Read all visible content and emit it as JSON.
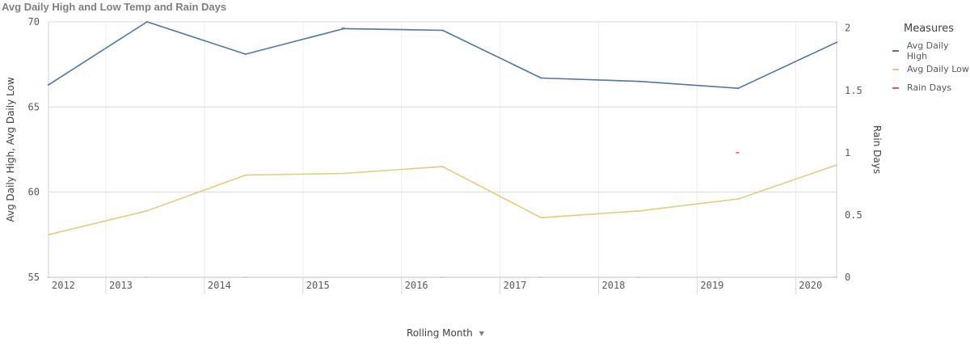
{
  "title": "Avg Daily High and Low Temp and Rain Days",
  "legend": {
    "title": "Measures",
    "items": [
      {
        "label": "Avg Daily High",
        "color": "#4a78a4"
      },
      {
        "label": "Avg Daily Low",
        "color": "#e2cd7a"
      },
      {
        "label": "Rain Days",
        "color": "#e05a72"
      }
    ]
  },
  "x_axis": {
    "title": "Rolling Month",
    "caret": "▼"
  },
  "chart_data": {
    "type": "line",
    "title": "Avg Daily High and Low Temp and Rain Days",
    "xlabel": "Rolling Month",
    "ylabel": "Avg Daily High, Avg Daily Low",
    "ylabel_right": "Rain Days",
    "categories": [
      "2012",
      "2013",
      "2014",
      "2015",
      "2016",
      "2017",
      "2018",
      "2019",
      "2020"
    ],
    "y_ticks": [
      "55",
      "60",
      "65",
      "70"
    ],
    "y_right_ticks": [
      "0",
      "0.5",
      "1",
      "1.5",
      "2"
    ],
    "ylim": [
      55,
      70
    ],
    "ylim_right": [
      0,
      2.05
    ],
    "grid": true,
    "legend_position": "right",
    "series": [
      {
        "name": "Avg Daily High",
        "axis": "left",
        "color": "#4a78a4",
        "values": [
          66.3,
          70.0,
          68.1,
          69.6,
          69.5,
          66.7,
          66.5,
          66.1,
          68.8
        ]
      },
      {
        "name": "Avg Daily Low",
        "axis": "left",
        "color": "#e2cd7a",
        "values": [
          57.5,
          58.9,
          61.0,
          61.1,
          61.5,
          58.5,
          58.9,
          59.6,
          61.6
        ]
      },
      {
        "name": "Rain Days",
        "axis": "right",
        "color": "#e05a72",
        "values": [
          0,
          0,
          0,
          2,
          0,
          0,
          0,
          1,
          0
        ]
      }
    ]
  }
}
